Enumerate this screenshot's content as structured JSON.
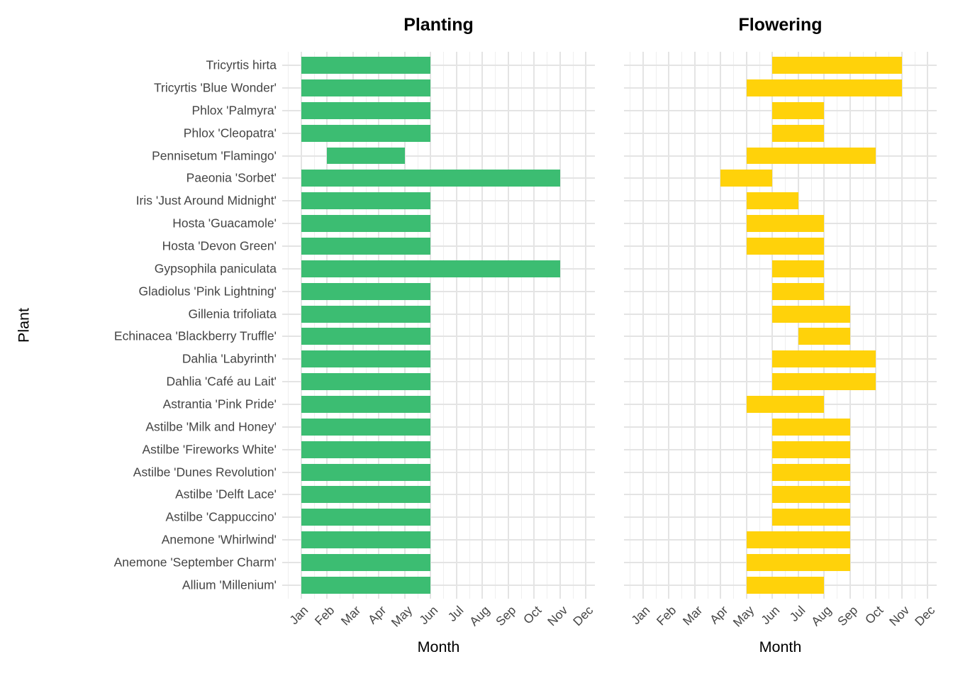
{
  "figure": {
    "title_left": "Planting",
    "title_right": "Flowering",
    "x_axis_title": "Month",
    "y_axis_title": "Plant"
  },
  "colors": {
    "planting_bar": "#3CBD72",
    "flowering_bar": "#FFD20A",
    "grid_major": "#E4E4E4",
    "grid_minor": "#EFEFEF",
    "axis_text": "#454545",
    "title_text": "#000000",
    "background": "#FFFFFF"
  },
  "chart_data": {
    "type": "bar",
    "variant": "horizontal-range-gantt",
    "facets": [
      {
        "title": "Planting",
        "series_key": "planting",
        "color": "#3CBD72"
      },
      {
        "title": "Flowering",
        "series_key": "flowering",
        "color": "#FFD20A"
      }
    ],
    "x": {
      "label": "Month",
      "ticks": [
        "Jan",
        "Feb",
        "Mar",
        "Apr",
        "May",
        "Jun",
        "Jul",
        "Aug",
        "Sep",
        "Oct",
        "Nov",
        "Dec"
      ],
      "unit": "month-number",
      "range": [
        1,
        12
      ],
      "grid": "major-and-minor"
    },
    "y": {
      "label": "Plant",
      "order": "alphabetical-from-bottom"
    },
    "plants": [
      {
        "name": "Tricyrtis hirta",
        "planting": {
          "start": 1,
          "end": 6
        },
        "flowering": {
          "start": 6,
          "end": 11
        }
      },
      {
        "name": "Tricyrtis 'Blue Wonder'",
        "planting": {
          "start": 1,
          "end": 6
        },
        "flowering": {
          "start": 5,
          "end": 11
        }
      },
      {
        "name": "Phlox 'Palmyra'",
        "planting": {
          "start": 1,
          "end": 6
        },
        "flowering": {
          "start": 6,
          "end": 8
        }
      },
      {
        "name": "Phlox 'Cleopatra'",
        "planting": {
          "start": 1,
          "end": 6
        },
        "flowering": {
          "start": 6,
          "end": 8
        }
      },
      {
        "name": "Pennisetum 'Flamingo'",
        "planting": {
          "start": 2,
          "end": 5
        },
        "flowering": {
          "start": 5,
          "end": 10
        }
      },
      {
        "name": "Paeonia 'Sorbet'",
        "planting": {
          "start": 1,
          "end": 11
        },
        "flowering": {
          "start": 4,
          "end": 6
        }
      },
      {
        "name": "Iris 'Just Around Midnight'",
        "planting": {
          "start": 1,
          "end": 6
        },
        "flowering": {
          "start": 5,
          "end": 7
        }
      },
      {
        "name": "Hosta 'Guacamole'",
        "planting": {
          "start": 1,
          "end": 6
        },
        "flowering": {
          "start": 5,
          "end": 8
        }
      },
      {
        "name": "Hosta 'Devon Green'",
        "planting": {
          "start": 1,
          "end": 6
        },
        "flowering": {
          "start": 5,
          "end": 8
        }
      },
      {
        "name": "Gypsophila paniculata",
        "planting": {
          "start": 1,
          "end": 11
        },
        "flowering": {
          "start": 6,
          "end": 8
        }
      },
      {
        "name": "Gladiolus 'Pink Lightning'",
        "planting": {
          "start": 1,
          "end": 6
        },
        "flowering": {
          "start": 6,
          "end": 8
        }
      },
      {
        "name": "Gillenia trifoliata",
        "planting": {
          "start": 1,
          "end": 6
        },
        "flowering": {
          "start": 6,
          "end": 9
        }
      },
      {
        "name": "Echinacea 'Blackberry Truffle'",
        "planting": {
          "start": 1,
          "end": 6
        },
        "flowering": {
          "start": 7,
          "end": 9
        }
      },
      {
        "name": "Dahlia 'Labyrinth'",
        "planting": {
          "start": 1,
          "end": 6
        },
        "flowering": {
          "start": 6,
          "end": 10
        }
      },
      {
        "name": "Dahlia 'Café au Lait'",
        "planting": {
          "start": 1,
          "end": 6
        },
        "flowering": {
          "start": 6,
          "end": 10
        }
      },
      {
        "name": "Astrantia 'Pink Pride'",
        "planting": {
          "start": 1,
          "end": 6
        },
        "flowering": {
          "start": 5,
          "end": 8
        }
      },
      {
        "name": "Astilbe 'Milk and Honey'",
        "planting": {
          "start": 1,
          "end": 6
        },
        "flowering": {
          "start": 6,
          "end": 9
        }
      },
      {
        "name": "Astilbe 'Fireworks White'",
        "planting": {
          "start": 1,
          "end": 6
        },
        "flowering": {
          "start": 6,
          "end": 9
        }
      },
      {
        "name": "Astilbe 'Dunes Revolution'",
        "planting": {
          "start": 1,
          "end": 6
        },
        "flowering": {
          "start": 6,
          "end": 9
        }
      },
      {
        "name": "Astilbe 'Delft Lace'",
        "planting": {
          "start": 1,
          "end": 6
        },
        "flowering": {
          "start": 6,
          "end": 9
        }
      },
      {
        "name": "Astilbe 'Cappuccino'",
        "planting": {
          "start": 1,
          "end": 6
        },
        "flowering": {
          "start": 6,
          "end": 9
        }
      },
      {
        "name": "Anemone 'Whirlwind'",
        "planting": {
          "start": 1,
          "end": 6
        },
        "flowering": {
          "start": 5,
          "end": 9
        }
      },
      {
        "name": "Anemone 'September Charm'",
        "planting": {
          "start": 1,
          "end": 6
        },
        "flowering": {
          "start": 5,
          "end": 9
        }
      },
      {
        "name": "Allium 'Millenium'",
        "planting": {
          "start": 1,
          "end": 6
        },
        "flowering": {
          "start": 5,
          "end": 8
        }
      }
    ]
  }
}
